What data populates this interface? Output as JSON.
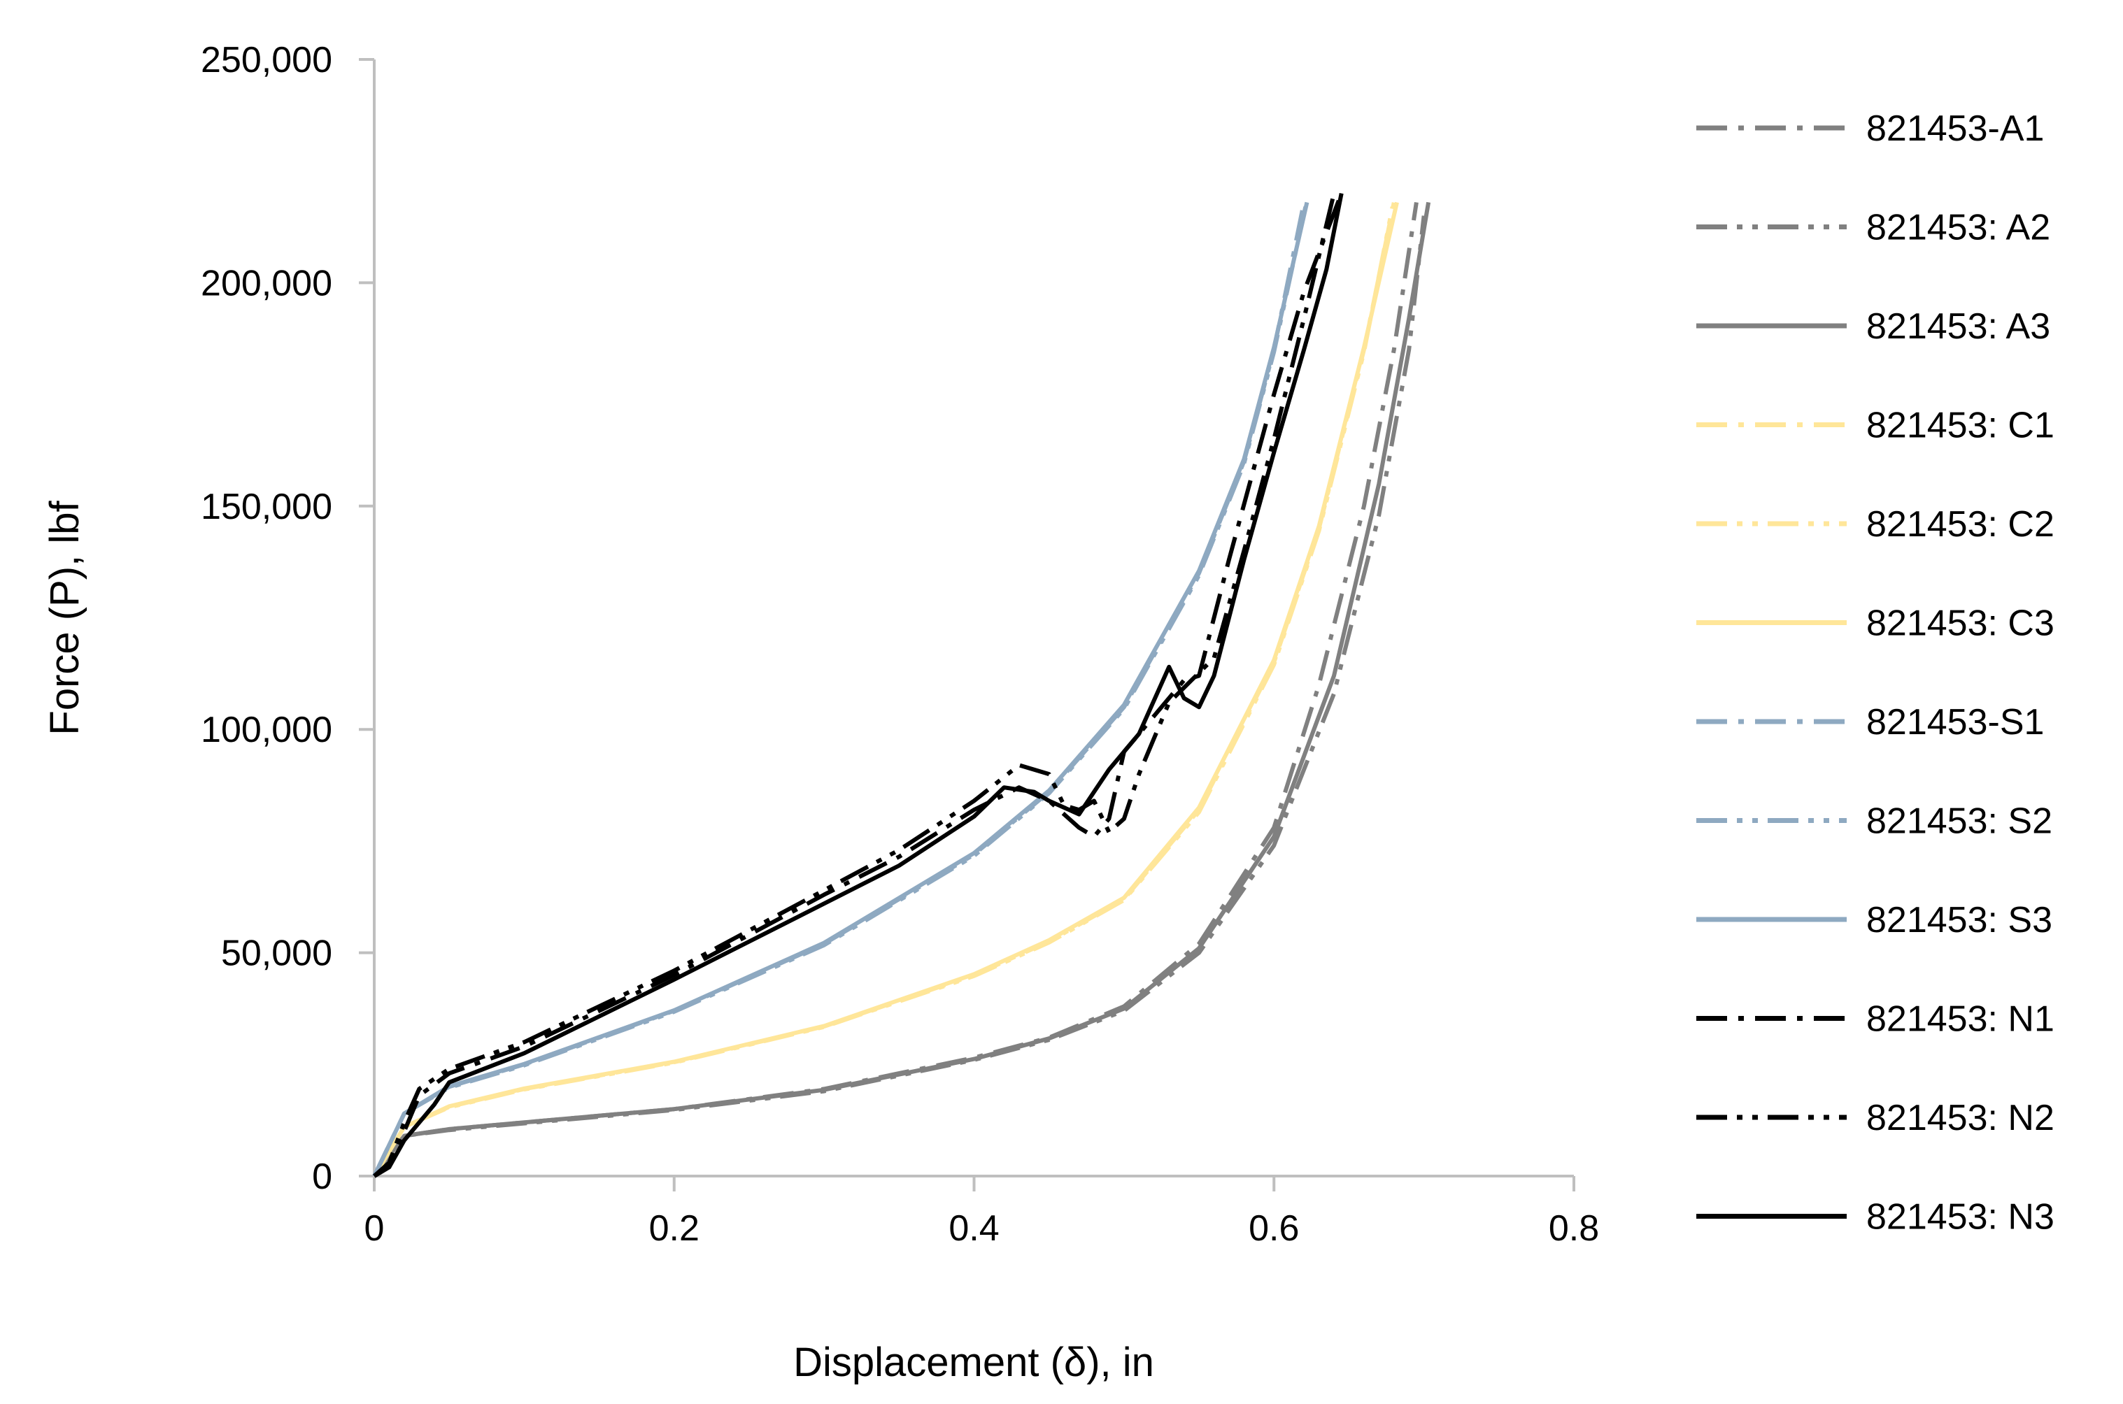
{
  "chart_data": {
    "type": "line",
    "title": "",
    "xlabel": "Displacement (δ), in",
    "ylabel": "Force (P), lbf",
    "xlim": [
      0,
      0.8
    ],
    "ylim": [
      0,
      250000
    ],
    "x_ticks": [
      0,
      0.2,
      0.4,
      0.6,
      0.8
    ],
    "x_tick_labels": [
      "0",
      "0.2",
      "0.4",
      "0.6",
      "0.8"
    ],
    "y_ticks": [
      0,
      50000,
      100000,
      150000,
      200000,
      250000
    ],
    "y_tick_labels": [
      "0",
      "50,000",
      "100,000",
      "150,000",
      "200,000",
      "250,000"
    ],
    "grid": false,
    "legend_position": "right",
    "series": [
      {
        "name": "821453-A1",
        "color": "#808080",
        "dash": "dash-dot",
        "points": [
          [
            0,
            0
          ],
          [
            0.02,
            9000
          ],
          [
            0.05,
            10500
          ],
          [
            0.1,
            12000
          ],
          [
            0.2,
            15000
          ],
          [
            0.3,
            19500
          ],
          [
            0.4,
            26500
          ],
          [
            0.45,
            31000
          ],
          [
            0.5,
            38000
          ],
          [
            0.55,
            52000
          ],
          [
            0.6,
            78000
          ],
          [
            0.63,
            110000
          ],
          [
            0.66,
            150000
          ],
          [
            0.68,
            185000
          ],
          [
            0.695,
            218000
          ]
        ]
      },
      {
        "name": "821453: A2",
        "color": "#808080",
        "dash": "dash-dot-dot",
        "points": [
          [
            0,
            0
          ],
          [
            0.02,
            9000
          ],
          [
            0.05,
            10300
          ],
          [
            0.1,
            11800
          ],
          [
            0.2,
            14800
          ],
          [
            0.3,
            19000
          ],
          [
            0.4,
            26000
          ],
          [
            0.45,
            30500
          ],
          [
            0.5,
            37000
          ],
          [
            0.55,
            50000
          ],
          [
            0.6,
            74000
          ],
          [
            0.64,
            108000
          ],
          [
            0.67,
            148000
          ],
          [
            0.69,
            185000
          ],
          [
            0.7,
            215000
          ]
        ]
      },
      {
        "name": "821453: A3",
        "color": "#808080",
        "dash": "solid",
        "points": [
          [
            0,
            0
          ],
          [
            0.02,
            9000
          ],
          [
            0.05,
            10500
          ],
          [
            0.1,
            12000
          ],
          [
            0.2,
            15000
          ],
          [
            0.3,
            19300
          ],
          [
            0.4,
            26200
          ],
          [
            0.45,
            30800
          ],
          [
            0.5,
            37500
          ],
          [
            0.55,
            51000
          ],
          [
            0.6,
            76000
          ],
          [
            0.64,
            112000
          ],
          [
            0.67,
            155000
          ],
          [
            0.69,
            192000
          ],
          [
            0.703,
            218000
          ]
        ]
      },
      {
        "name": "821453: C1",
        "color": "#FFE699",
        "dash": "dash-dot",
        "points": [
          [
            0,
            0
          ],
          [
            0.02,
            11000
          ],
          [
            0.05,
            15500
          ],
          [
            0.1,
            19500
          ],
          [
            0.2,
            25500
          ],
          [
            0.3,
            33500
          ],
          [
            0.4,
            45000
          ],
          [
            0.45,
            52500
          ],
          [
            0.5,
            62000
          ],
          [
            0.55,
            82000
          ],
          [
            0.6,
            115000
          ],
          [
            0.63,
            145000
          ],
          [
            0.66,
            185000
          ],
          [
            0.68,
            218000
          ]
        ]
      },
      {
        "name": "821453: C2",
        "color": "#FFE699",
        "dash": "dash-dot-dot",
        "points": [
          [
            0,
            0
          ],
          [
            0.02,
            11000
          ],
          [
            0.05,
            15400
          ],
          [
            0.1,
            19400
          ],
          [
            0.2,
            25400
          ],
          [
            0.3,
            33400
          ],
          [
            0.4,
            44800
          ],
          [
            0.45,
            52300
          ],
          [
            0.5,
            61800
          ],
          [
            0.55,
            81500
          ],
          [
            0.6,
            114500
          ],
          [
            0.63,
            144500
          ],
          [
            0.66,
            184500
          ],
          [
            0.679,
            217000
          ]
        ]
      },
      {
        "name": "821453: C3",
        "color": "#FFE699",
        "dash": "solid",
        "points": [
          [
            0,
            0
          ],
          [
            0.02,
            11000
          ],
          [
            0.05,
            15600
          ],
          [
            0.1,
            19600
          ],
          [
            0.2,
            25600
          ],
          [
            0.3,
            33600
          ],
          [
            0.4,
            45200
          ],
          [
            0.45,
            52800
          ],
          [
            0.5,
            62300
          ],
          [
            0.55,
            82500
          ],
          [
            0.6,
            115500
          ],
          [
            0.63,
            145500
          ],
          [
            0.66,
            185500
          ],
          [
            0.682,
            218000
          ]
        ]
      },
      {
        "name": "821453-S1",
        "color": "#8EA9C1",
        "dash": "dash-dot",
        "points": [
          [
            0,
            0
          ],
          [
            0.02,
            14000
          ],
          [
            0.05,
            20000
          ],
          [
            0.1,
            25000
          ],
          [
            0.2,
            37000
          ],
          [
            0.3,
            52000
          ],
          [
            0.4,
            72000
          ],
          [
            0.45,
            86000
          ],
          [
            0.5,
            105000
          ],
          [
            0.55,
            135000
          ],
          [
            0.58,
            160000
          ],
          [
            0.6,
            185000
          ],
          [
            0.62,
            218000
          ]
        ]
      },
      {
        "name": "821453: S2",
        "color": "#8EA9C1",
        "dash": "dash-dot-dot",
        "points": [
          [
            0,
            0
          ],
          [
            0.02,
            14000
          ],
          [
            0.05,
            19800
          ],
          [
            0.1,
            24800
          ],
          [
            0.2,
            36800
          ],
          [
            0.3,
            51700
          ],
          [
            0.4,
            71700
          ],
          [
            0.45,
            85700
          ],
          [
            0.5,
            104600
          ],
          [
            0.55,
            134500
          ],
          [
            0.58,
            159500
          ],
          [
            0.6,
            184500
          ],
          [
            0.621,
            217000
          ]
        ]
      },
      {
        "name": "821453: S3",
        "color": "#8EA9C1",
        "dash": "solid",
        "points": [
          [
            0,
            0
          ],
          [
            0.02,
            14000
          ],
          [
            0.05,
            20100
          ],
          [
            0.1,
            25100
          ],
          [
            0.2,
            37100
          ],
          [
            0.3,
            52200
          ],
          [
            0.4,
            72300
          ],
          [
            0.45,
            86300
          ],
          [
            0.5,
            105500
          ],
          [
            0.55,
            135500
          ],
          [
            0.58,
            160500
          ],
          [
            0.6,
            185500
          ],
          [
            0.622,
            218000
          ]
        ]
      },
      {
        "name": "821453: N1",
        "color": "#000000",
        "dash": "dash-dot",
        "points": [
          [
            0,
            0
          ],
          [
            0.01,
            2000
          ],
          [
            0.02,
            10000
          ],
          [
            0.03,
            18000
          ],
          [
            0.05,
            23000
          ],
          [
            0.1,
            29000
          ],
          [
            0.2,
            45000
          ],
          [
            0.3,
            63000
          ],
          [
            0.35,
            71500
          ],
          [
            0.4,
            82000
          ],
          [
            0.43,
            87000
          ],
          [
            0.45,
            84000
          ],
          [
            0.47,
            78000
          ],
          [
            0.48,
            76000
          ],
          [
            0.49,
            80000
          ],
          [
            0.5,
            95000
          ],
          [
            0.52,
            103000
          ],
          [
            0.54,
            111000
          ],
          [
            0.55,
            112000
          ],
          [
            0.57,
            138000
          ],
          [
            0.6,
            175000
          ],
          [
            0.62,
            198000
          ],
          [
            0.645,
            220000
          ]
        ]
      },
      {
        "name": "821453: N2",
        "color": "#000000",
        "dash": "dash-dot-dot",
        "points": [
          [
            0,
            0
          ],
          [
            0.01,
            3000
          ],
          [
            0.02,
            12000
          ],
          [
            0.03,
            19500
          ],
          [
            0.05,
            24000
          ],
          [
            0.1,
            30000
          ],
          [
            0.2,
            46000
          ],
          [
            0.3,
            64000
          ],
          [
            0.35,
            73000
          ],
          [
            0.4,
            84000
          ],
          [
            0.43,
            92000
          ],
          [
            0.45,
            90000
          ],
          [
            0.46,
            83000
          ],
          [
            0.47,
            82000
          ],
          [
            0.48,
            84000
          ],
          [
            0.49,
            77000
          ],
          [
            0.5,
            80000
          ],
          [
            0.51,
            90000
          ],
          [
            0.53,
            106000
          ],
          [
            0.545,
            111000
          ],
          [
            0.56,
            116000
          ],
          [
            0.58,
            140000
          ],
          [
            0.6,
            165000
          ],
          [
            0.62,
            192000
          ],
          [
            0.64,
            220000
          ]
        ]
      },
      {
        "name": "821453: N3",
        "color": "#000000",
        "dash": "solid",
        "points": [
          [
            0,
            0
          ],
          [
            0.01,
            2000
          ],
          [
            0.02,
            8000
          ],
          [
            0.04,
            16000
          ],
          [
            0.05,
            21000
          ],
          [
            0.1,
            27500
          ],
          [
            0.2,
            44000
          ],
          [
            0.3,
            61000
          ],
          [
            0.35,
            69500
          ],
          [
            0.4,
            80500
          ],
          [
            0.42,
            87000
          ],
          [
            0.44,
            86000
          ],
          [
            0.45,
            84000
          ],
          [
            0.47,
            81000
          ],
          [
            0.48,
            86000
          ],
          [
            0.49,
            91000
          ],
          [
            0.51,
            99000
          ],
          [
            0.53,
            114000
          ],
          [
            0.54,
            107000
          ],
          [
            0.55,
            105000
          ],
          [
            0.56,
            112000
          ],
          [
            0.58,
            138000
          ],
          [
            0.6,
            162000
          ],
          [
            0.62,
            185000
          ],
          [
            0.635,
            203000
          ],
          [
            0.645,
            220000
          ]
        ]
      }
    ]
  }
}
